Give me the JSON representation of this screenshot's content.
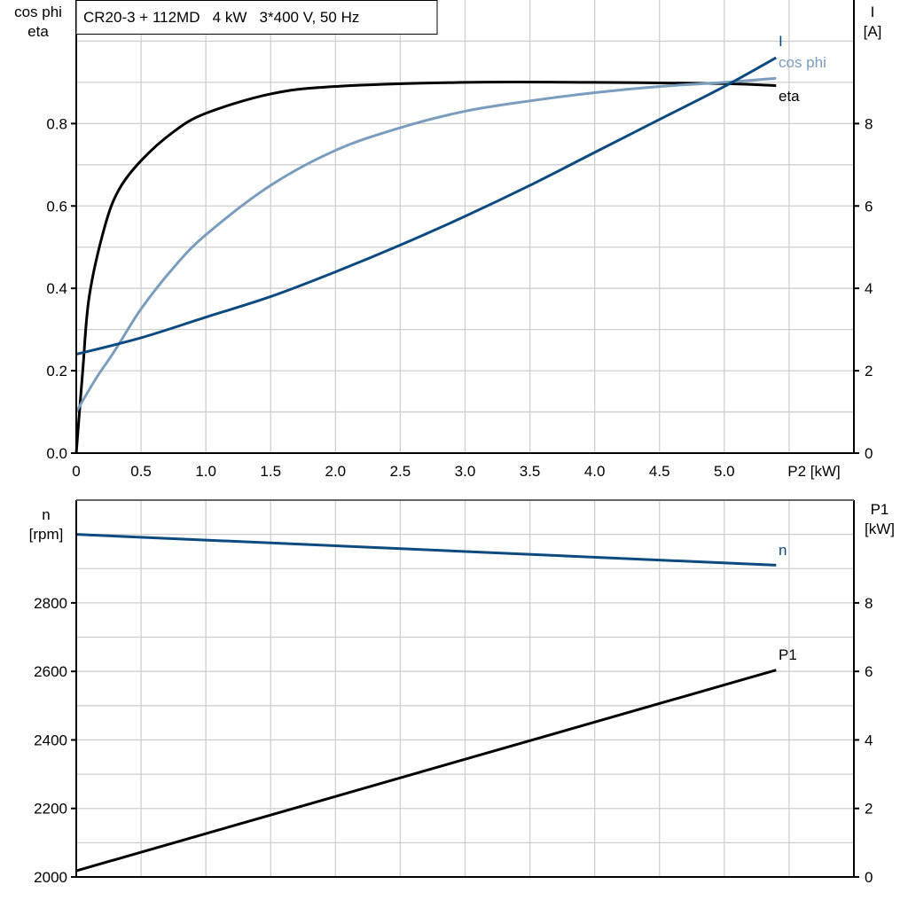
{
  "chart_data": [
    {
      "type": "line",
      "title": "CR20-3 + 112MD   4 kW   3*400 V, 50 Hz",
      "xlabel": "P2 [kW]",
      "ylabel_left": [
        "cos phi",
        "eta"
      ],
      "ylabel_right": [
        "I",
        "[A]"
      ],
      "xlim": [
        0,
        6
      ],
      "ylim_left": [
        0,
        1.1
      ],
      "ylim_right": [
        0,
        11
      ],
      "x_ticks": [
        "0",
        "0.5",
        "1.0",
        "1.5",
        "2.0",
        "2.5",
        "3.0",
        "3.5",
        "4.0",
        "4.5",
        "5.0"
      ],
      "y_ticks_left": [
        "0.0",
        "0.2",
        "0.4",
        "0.6",
        "0.8"
      ],
      "y_ticks_right": [
        "0",
        "2",
        "4",
        "6",
        "8"
      ],
      "grid": true,
      "series": [
        {
          "name": "eta",
          "axis": "left",
          "color": "#000000",
          "x": [
            0,
            0.05,
            0.1,
            0.22,
            0.33,
            0.5,
            0.75,
            1.0,
            1.5,
            2.0,
            3.0,
            4.0,
            5.0,
            5.4
          ],
          "y": [
            0,
            0.2,
            0.38,
            0.55,
            0.64,
            0.71,
            0.78,
            0.825,
            0.872,
            0.89,
            0.9,
            0.9,
            0.897,
            0.892
          ]
        },
        {
          "name": "cos phi",
          "axis": "left",
          "color": "#7a9cbd",
          "x": [
            0,
            0.15,
            0.3,
            0.5,
            0.75,
            1.0,
            1.5,
            2.0,
            2.5,
            3.0,
            3.5,
            4.0,
            4.5,
            5.0,
            5.4
          ],
          "y": [
            0.1,
            0.18,
            0.25,
            0.35,
            0.45,
            0.53,
            0.65,
            0.735,
            0.79,
            0.83,
            0.855,
            0.875,
            0.89,
            0.9,
            0.91
          ]
        },
        {
          "name": "I",
          "axis": "right",
          "color": "#0d4a80",
          "x": [
            0,
            0.5,
            1.0,
            1.5,
            2.0,
            2.5,
            3.0,
            3.5,
            4.0,
            4.5,
            5.0,
            5.4
          ],
          "y": [
            2.4,
            2.8,
            3.3,
            3.8,
            4.4,
            5.05,
            5.75,
            6.5,
            7.3,
            8.1,
            8.9,
            9.6
          ]
        }
      ]
    },
    {
      "type": "line",
      "xlim": [
        0,
        6
      ],
      "ylabel_left": [
        "n",
        "[rpm]"
      ],
      "ylabel_right": [
        "P1",
        "[kW]"
      ],
      "ylim_left": [
        2000,
        3100
      ],
      "ylim_right": [
        0,
        11
      ],
      "y_ticks_left": [
        "2000",
        "2200",
        "2400",
        "2600",
        "2800"
      ],
      "y_ticks_right": [
        "0",
        "2",
        "4",
        "6",
        "8"
      ],
      "grid": true,
      "series": [
        {
          "name": "n",
          "axis": "left",
          "color": "#0d4a80",
          "x": [
            0,
            5.4
          ],
          "y": [
            3000,
            2910
          ]
        },
        {
          "name": "P1",
          "axis": "right",
          "color": "#000000",
          "x": [
            0,
            5.4
          ],
          "y": [
            0.18,
            6.04
          ]
        }
      ]
    }
  ]
}
